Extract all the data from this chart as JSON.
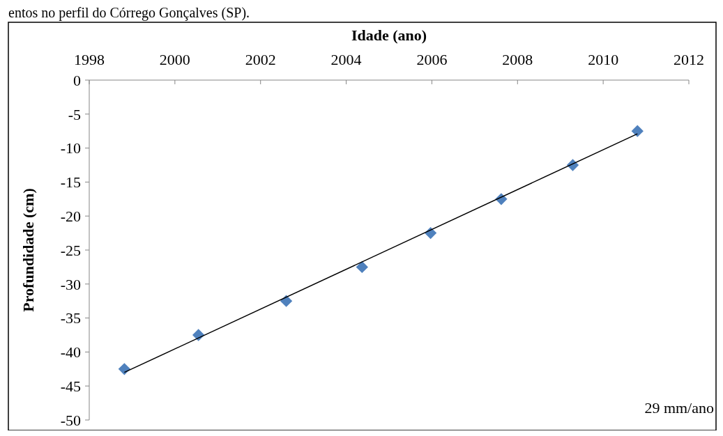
{
  "chart_data": {
    "type": "scatter",
    "xlabel": "Idade (ano)",
    "ylabel": "Profundidade (cm)",
    "xlim": [
      1998,
      2012
    ],
    "xticks": [
      1998,
      2000,
      2002,
      2004,
      2006,
      2008,
      2010,
      2012
    ],
    "ylim": [
      -50,
      0
    ],
    "yticks": [
      0,
      -5,
      -10,
      -15,
      -20,
      -25,
      -30,
      -35,
      -40,
      -45,
      -50
    ],
    "annotations": [
      "entos no perfil do Córrego Gonçalves (SP).",
      "29 mm/ano"
    ],
    "series": [
      {
        "color": "#4f81bd",
        "marker": "diamond",
        "x": [
          1998.82,
          2000.55,
          2002.6,
          2004.37,
          2005.97,
          2007.62,
          2009.29,
          2010.8
        ],
        "values": [
          -42.5,
          -37.5,
          -32.5,
          -27.5,
          -22.5,
          -17.5,
          -12.5,
          -7.5
        ]
      },
      {
        "type": "line",
        "color": "#000000",
        "line_style": "solid",
        "marker": "none",
        "x": [
          1998.82,
          2010.8
        ],
        "values": [
          -43,
          -7.9
        ]
      }
    ]
  }
}
